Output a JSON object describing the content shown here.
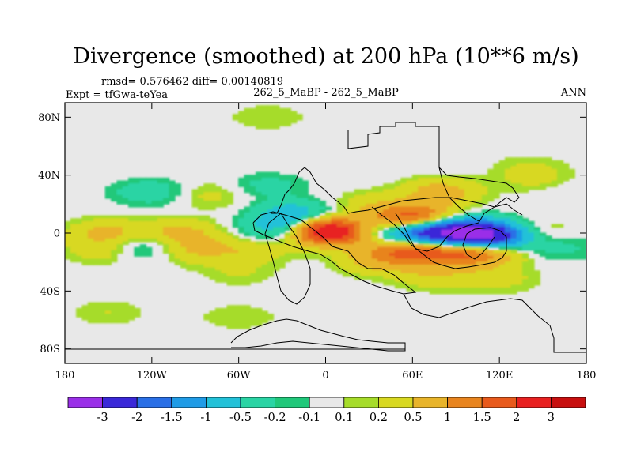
{
  "chart_data": {
    "type": "heatmap",
    "title": "Divergence (smoothed) at 200 hPa (10**6 m/s)",
    "stats_line": "rmsd= 0.576462 diff= 0.00140819",
    "experiment_label": "Expt = tfGwa-teYea",
    "comparison_label": "262_5_MaBP - 262_5_MaBP",
    "period_label": "ANN",
    "projection": "cylindrical equidistant",
    "x_range": [
      -180,
      180
    ],
    "y_range": [
      -90,
      90
    ],
    "x_ticks": [
      {
        "value": -180,
        "label": "180"
      },
      {
        "value": -120,
        "label": "120W"
      },
      {
        "value": -60,
        "label": "60W"
      },
      {
        "value": 0,
        "label": "0"
      },
      {
        "value": 60,
        "label": "60E"
      },
      {
        "value": 120,
        "label": "120E"
      },
      {
        "value": 180,
        "label": "180"
      }
    ],
    "y_ticks": [
      {
        "value": 80,
        "label": "80N"
      },
      {
        "value": 40,
        "label": "40N"
      },
      {
        "value": 0,
        "label": "0"
      },
      {
        "value": -40,
        "label": "40S"
      },
      {
        "value": -80,
        "label": "80S"
      }
    ],
    "levels": [
      -3,
      -2,
      -1.5,
      -1,
      -0.5,
      -0.2,
      -0.1,
      0.1,
      0.2,
      0.5,
      1,
      1.5,
      2,
      3
    ],
    "level_labels": [
      "-3",
      "-2",
      "-1.5",
      "-1",
      "-0.5",
      "-0.2",
      "-0.1",
      "0.1",
      "0.2",
      "0.5",
      "1",
      "1.5",
      "2",
      "3"
    ],
    "colors": [
      "#9a2fe8",
      "#3a28d8",
      "#2a6fe6",
      "#1f9be6",
      "#22c1d8",
      "#2ad4a4",
      "#20c87a",
      "#e8e8e8",
      "#a6dc2a",
      "#d8d820",
      "#e8b42a",
      "#e8841e",
      "#e85a1c",
      "#e82020",
      "#c80f0f"
    ],
    "features": [
      {
        "lon": -20,
        "lat": 12,
        "value": -0.9
      },
      {
        "lon": -30,
        "lat": 2,
        "value": -0.7
      },
      {
        "lon": -100,
        "lat": 0,
        "value": 0.6
      },
      {
        "lon": -150,
        "lat": 0,
        "value": 0.6
      },
      {
        "lon": -150,
        "lat": -12,
        "value": 0.5
      },
      {
        "lon": -130,
        "lat": -10,
        "value": -0.6
      },
      {
        "lon": -90,
        "lat": -12,
        "value": 0.5
      },
      {
        "lon": -50,
        "lat": -12,
        "value": 0.4
      },
      {
        "lon": -120,
        "lat": 28,
        "value": -0.4
      },
      {
        "lon": -80,
        "lat": 26,
        "value": 0.3
      },
      {
        "lon": -40,
        "lat": 32,
        "value": -0.3
      },
      {
        "lon": 0,
        "lat": 2,
        "value": 1.5
      },
      {
        "lon": 10,
        "lat": 0,
        "value": 2.2
      },
      {
        "lon": 25,
        "lat": 0,
        "value": -1.2
      },
      {
        "lon": 60,
        "lat": 10,
        "value": 2.0
      },
      {
        "lon": 70,
        "lat": 0,
        "value": -2.2
      },
      {
        "lon": 95,
        "lat": 0,
        "value": -1.8
      },
      {
        "lon": 115,
        "lat": -2,
        "value": -2.5
      },
      {
        "lon": 55,
        "lat": -12,
        "value": 1.4
      },
      {
        "lon": 85,
        "lat": -14,
        "value": 1.2
      },
      {
        "lon": 110,
        "lat": -14,
        "value": 1.0
      },
      {
        "lon": 140,
        "lat": 0,
        "value": 0.5
      },
      {
        "lon": 160,
        "lat": -10,
        "value": -0.3
      },
      {
        "lon": 80,
        "lat": 28,
        "value": 0.7
      },
      {
        "lon": 30,
        "lat": 20,
        "value": 0.3
      },
      {
        "lon": 35,
        "lat": -20,
        "value": 0.5
      },
      {
        "lon": 75,
        "lat": -30,
        "value": 0.4
      },
      {
        "lon": 120,
        "lat": -32,
        "value": 0.3
      },
      {
        "lon": -60,
        "lat": -28,
        "value": 0.2
      },
      {
        "lon": 150,
        "lat": 35,
        "value": 0.3
      },
      {
        "lon": 165,
        "lat": 30,
        "value": -0.2
      },
      {
        "lon": 140,
        "lat": 45,
        "value": 0.2
      },
      {
        "lon": -40,
        "lat": 80,
        "value": 0.2
      },
      {
        "lon": -150,
        "lat": -55,
        "value": 0.2
      },
      {
        "lon": -60,
        "lat": -58,
        "value": 0.2
      }
    ]
  }
}
